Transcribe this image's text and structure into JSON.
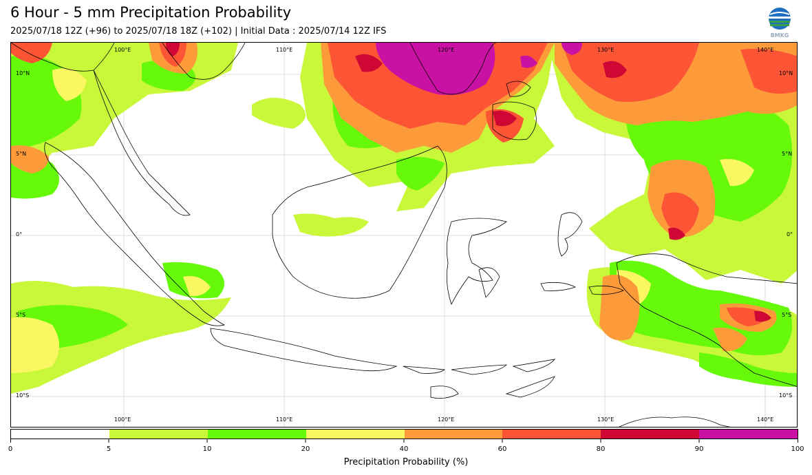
{
  "header": {
    "title": "6 Hour - 5 mm Precipitation Probability",
    "subtitle": "2025/07/18 12Z (+96) to 2025/07/18 18Z (+102) | Initial Data : 2025/07/14 12Z IFS",
    "logo_text": "BMKG"
  },
  "map": {
    "lon_labels": [
      "100°E",
      "110°E",
      "120°E",
      "130°E",
      "140°E"
    ],
    "lat_labels": [
      "10°N",
      "5°N",
      "0°",
      "5°S",
      "10°S"
    ],
    "colors": {
      "p5": "#c9f83a",
      "p10": "#66f90a",
      "p20": "#fbf763",
      "p40": "#fd9a3a",
      "p60": "#fb5536",
      "p80": "#cf0734",
      "p90": "#c911a4",
      "land_outline": "#000000",
      "grid": "#d8d8d8"
    }
  },
  "colorbar": {
    "label": "Precipitation Probability (%)",
    "ticks": [
      "0",
      "5",
      "10",
      "20",
      "40",
      "60",
      "80",
      "90",
      "100"
    ],
    "segment_colors": [
      "#ffffff",
      "#c9f83a",
      "#66f90a",
      "#fbf763",
      "#fd9a3a",
      "#fb5536",
      "#cf0734",
      "#c911a4"
    ]
  }
}
